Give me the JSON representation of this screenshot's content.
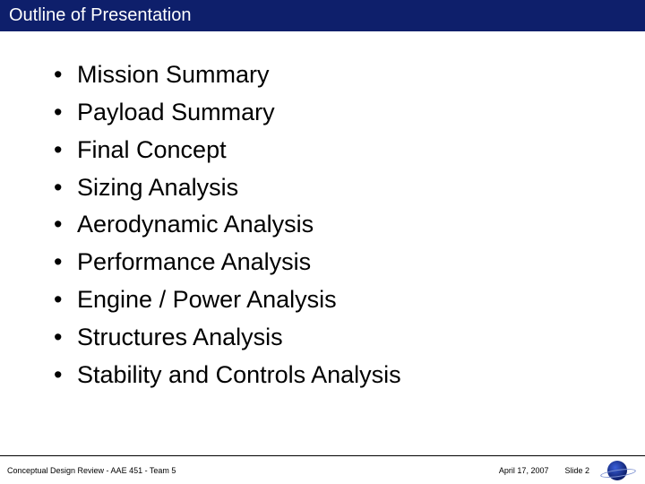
{
  "header": {
    "title": "Outline of Presentation"
  },
  "bullets": [
    "Mission Summary",
    "Payload Summary",
    "Final Concept",
    "Sizing Analysis",
    "Aerodynamic Analysis",
    "Performance Analysis",
    "Engine / Power Analysis",
    "Structures Analysis",
    "Stability and Controls Analysis"
  ],
  "footer": {
    "left": "Conceptual Design Review - AAE 451 - Team 5",
    "date": "April 17, 2007",
    "slide": "Slide 2"
  },
  "colors": {
    "header_bg": "#0e1f6b",
    "header_text": "#ffffff",
    "body_text": "#000000",
    "background": "#ffffff"
  },
  "typography": {
    "header_fontsize": 20,
    "bullet_fontsize": 27,
    "footer_fontsize": 9,
    "font_family": "Century Gothic"
  }
}
